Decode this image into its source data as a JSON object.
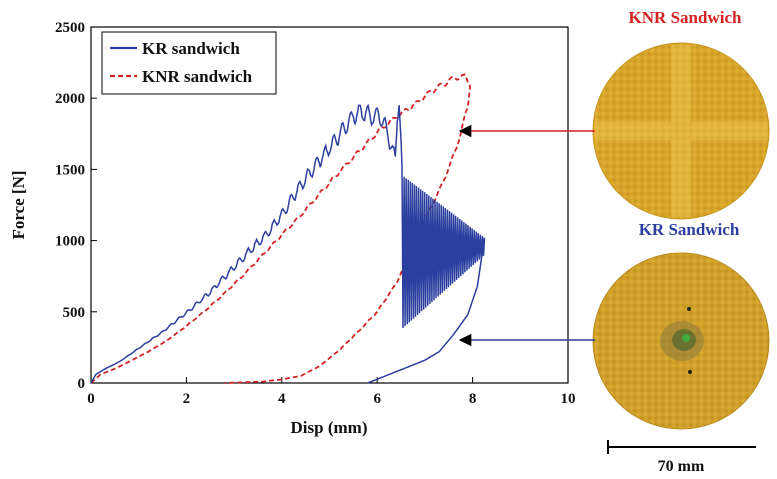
{
  "colors": {
    "kr": "#2b3f9f",
    "knr": "#d42323",
    "knr_sample": "#d8a62a",
    "kr_sample": "#d2a12a",
    "axis": "#000000"
  },
  "chart_data": {
    "type": "line",
    "xlabel": "Disp (mm)",
    "ylabel": "Force [N]",
    "xlim": [
      0,
      10
    ],
    "ylim": [
      0,
      2500
    ],
    "xticks": [
      "0",
      "2",
      "4",
      "6",
      "8",
      "10"
    ],
    "yticks": [
      "0",
      "500",
      "1000",
      "1500",
      "2000",
      "2500"
    ],
    "grid": false,
    "legend_position": "top-left",
    "series": [
      {
        "name": "KR sandwich",
        "style": "solid",
        "color": "#2b3f9f",
        "x": [
          0,
          0.1,
          0.3,
          0.6,
          0.9,
          1.2,
          1.5,
          1.8,
          2.1,
          2.5,
          2.9,
          3.3,
          3.7,
          4.0,
          4.3,
          4.6,
          4.9,
          5.2,
          5.5,
          5.7,
          5.9,
          6.05,
          6.2,
          6.3,
          6.38,
          6.42,
          6.46,
          6.52
        ],
        "y": [
          0,
          60,
          100,
          150,
          220,
          290,
          360,
          440,
          520,
          640,
          780,
          920,
          1050,
          1180,
          1340,
          1480,
          1610,
          1740,
          1880,
          1900,
          1870,
          1880,
          1780,
          1650,
          1580,
          1880,
          1980,
          1520
        ],
        "osc_x": [
          6.52,
          8.25
        ],
        "osc_range": [
          [
            380,
            1460
          ],
          [
            900,
            1020
          ]
        ],
        "return_x": [
          8.25,
          8.1,
          7.9,
          7.6,
          7.3,
          7.0,
          6.7,
          6.4,
          6.1,
          5.8
        ],
        "return_y": [
          1020,
          680,
          480,
          340,
          220,
          160,
          120,
          80,
          40,
          0
        ]
      },
      {
        "name": "KNR sandwich",
        "style": "dashed",
        "color": "#d42323",
        "x": [
          0,
          0.2,
          0.5,
          0.8,
          1.2,
          1.6,
          2.0,
          2.4,
          2.8,
          3.2,
          3.6,
          4.0,
          4.4,
          4.8,
          5.2,
          5.6,
          6.0,
          6.4,
          6.8,
          7.1,
          7.4,
          7.6,
          7.75,
          7.85,
          7.95,
          7.9,
          7.75,
          7.55,
          7.3,
          7.0,
          6.7,
          6.4,
          6.0,
          5.6,
          5.2,
          4.8,
          4.4,
          4.0,
          3.6,
          3.2,
          2.8
        ],
        "y": [
          0,
          60,
          100,
          150,
          220,
          300,
          400,
          510,
          630,
          760,
          900,
          1040,
          1180,
          1330,
          1480,
          1620,
          1760,
          1870,
          1960,
          2040,
          2100,
          2140,
          2150,
          2150,
          2100,
          1950,
          1750,
          1550,
          1350,
          1150,
          920,
          700,
          500,
          360,
          230,
          120,
          50,
          25,
          10,
          5,
          0
        ]
      }
    ]
  },
  "samples": {
    "top_title": "KNR Sandwich",
    "bottom_title": "KR Sandwich",
    "scale_label": "70 mm"
  }
}
